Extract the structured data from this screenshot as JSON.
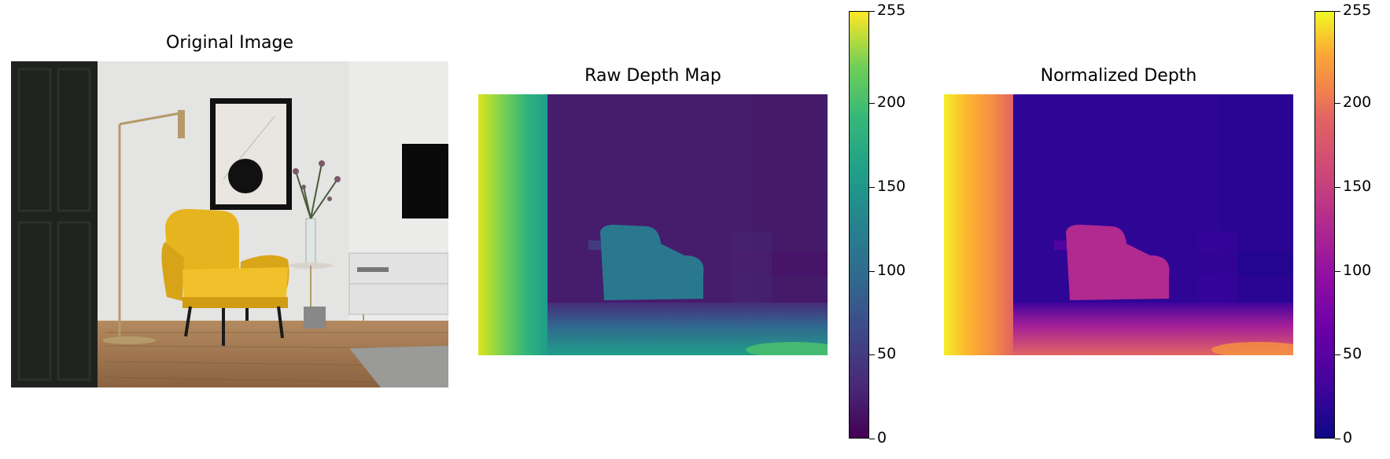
{
  "panels": [
    {
      "title": "Original Image"
    },
    {
      "title": "Raw Depth Map"
    },
    {
      "title": "Normalized Depth"
    }
  ],
  "chart_data": [
    {
      "type": "image",
      "title": "Original Image",
      "description_colors": {
        "wall": "#e6e6e6",
        "floor": "#a07a55",
        "chair": "#e8b620",
        "cabinet": "#1e211f"
      }
    },
    {
      "type": "heatmap",
      "title": "Raw Depth Map",
      "colormap": "viridis",
      "colorbar": {
        "range": [
          0,
          255
        ],
        "ticks": [
          0,
          50,
          100,
          150,
          200,
          255
        ]
      },
      "colors": {
        "low": "#440154",
        "high": "#fde725"
      }
    },
    {
      "type": "heatmap",
      "title": "Normalized Depth",
      "colormap": "plasma",
      "colorbar": {
        "range": [
          0,
          255
        ],
        "ticks": [
          0,
          50,
          100,
          150,
          200,
          255
        ]
      },
      "colors": {
        "low": "#0d0887",
        "high": "#f0f921"
      }
    }
  ]
}
